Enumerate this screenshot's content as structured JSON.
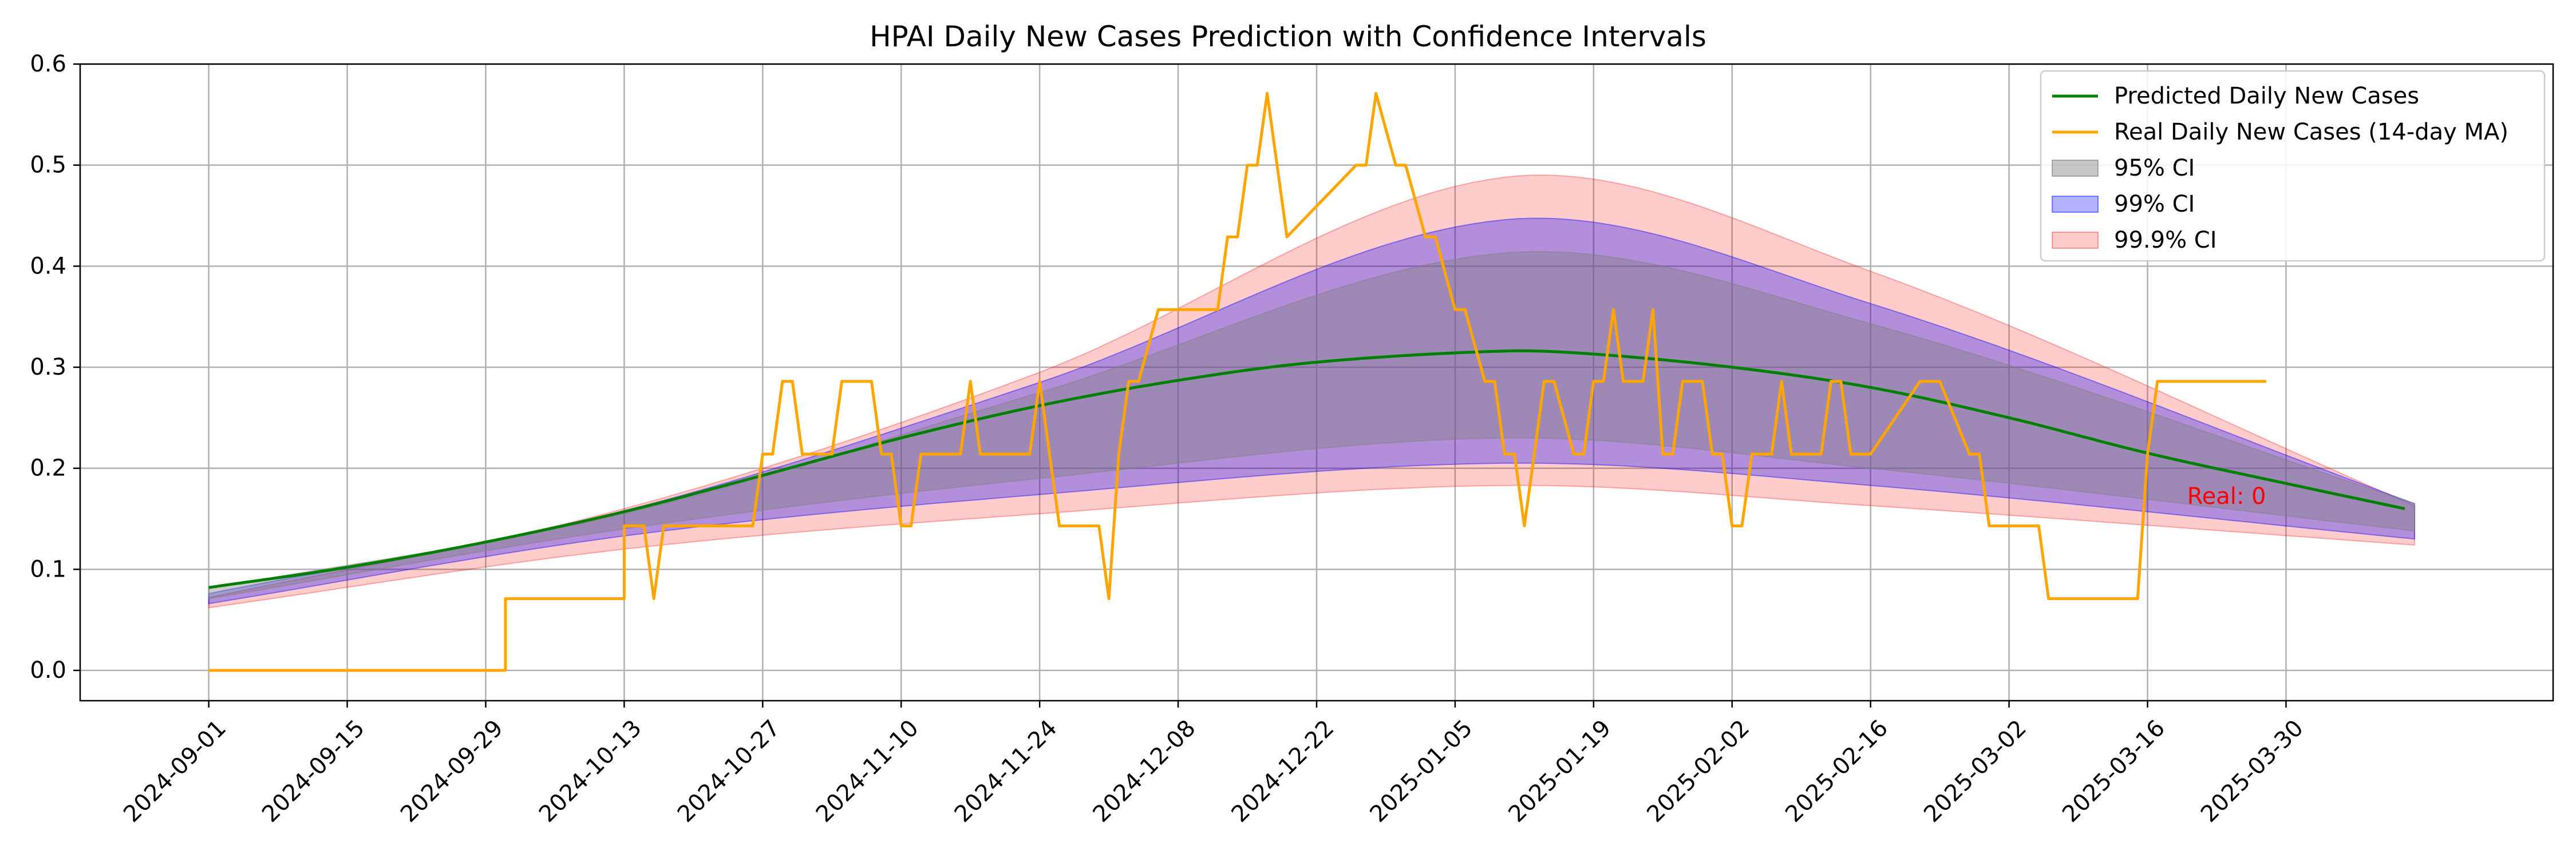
{
  "chart_data": {
    "type": "line",
    "title": "HPAI Daily New Cases Prediction with Confidence Intervals",
    "xlabel": "",
    "ylabel": "",
    "x_axis": {
      "type": "date",
      "min": "2024-08-19",
      "max": "2025-04-26",
      "ticks": [
        "2024-09-01",
        "2024-09-15",
        "2024-09-29",
        "2024-10-13",
        "2024-10-27",
        "2024-11-10",
        "2024-11-24",
        "2024-12-08",
        "2024-12-22",
        "2025-01-05",
        "2025-01-19",
        "2025-02-02",
        "2025-02-16",
        "2025-03-02",
        "2025-03-16",
        "2025-03-30"
      ]
    },
    "y_axis": {
      "min": -0.03,
      "max": 0.6,
      "ticks": [
        "0.0",
        "0.1",
        "0.2",
        "0.3",
        "0.4",
        "0.5",
        "0.6"
      ]
    },
    "grid": true,
    "legend_position": "top-right",
    "legend": [
      {
        "label": "Predicted Daily New Cases",
        "kind": "line",
        "color": "#008000"
      },
      {
        "label": "Real Daily New Cases (14-day MA)",
        "kind": "line",
        "color": "#FFA500"
      },
      {
        "label": "95% CI",
        "kind": "patch",
        "color": "#808080"
      },
      {
        "label": "99% CI",
        "kind": "patch",
        "color": "#0000FF"
      },
      {
        "label": "99.9% CI",
        "kind": "patch",
        "color": "#FF0000"
      }
    ],
    "bands": [
      {
        "name": "99.9% CI",
        "color": "#FF0000",
        "opacity": 0.2,
        "x": [
          "2024-09-01",
          "2024-10-13",
          "2024-11-24",
          "2025-01-10",
          "2025-02-16",
          "2025-04-12"
        ],
        "upper": [
          0.072,
          0.16,
          0.295,
          0.488,
          0.395,
          0.163
        ],
        "lower": [
          0.062,
          0.12,
          0.155,
          0.183,
          0.163,
          0.124
        ]
      },
      {
        "name": "99% CI",
        "color": "#0000FF",
        "opacity": 0.3,
        "x": [
          "2024-09-01",
          "2024-10-13",
          "2024-11-24",
          "2025-01-10",
          "2025-02-16",
          "2025-04-12"
        ],
        "upper": [
          0.076,
          0.158,
          0.285,
          0.446,
          0.363,
          0.165
        ],
        "lower": [
          0.066,
          0.133,
          0.174,
          0.205,
          0.183,
          0.13
        ]
      },
      {
        "name": "95% CI",
        "color": "#808080",
        "opacity": 0.4,
        "x": [
          "2024-09-01",
          "2024-10-13",
          "2024-11-24",
          "2025-01-10",
          "2025-02-16",
          "2025-04-12"
        ],
        "upper": [
          0.081,
          0.155,
          0.275,
          0.413,
          0.343,
          0.165
        ],
        "lower": [
          0.071,
          0.14,
          0.19,
          0.23,
          0.2,
          0.138
        ]
      }
    ],
    "series": [
      {
        "name": "Predicted Daily New Cases",
        "color": "#008000",
        "x": [
          "2024-09-01",
          "2024-09-15",
          "2024-09-29",
          "2024-10-13",
          "2024-10-27",
          "2024-11-10",
          "2024-11-24",
          "2024-12-08",
          "2024-12-22",
          "2025-01-10",
          "2025-01-19",
          "2025-02-02",
          "2025-02-16",
          "2025-03-02",
          "2025-03-16",
          "2025-03-30",
          "2025-04-11"
        ],
        "values": [
          0.082,
          0.102,
          0.127,
          0.157,
          0.193,
          0.23,
          0.262,
          0.287,
          0.305,
          0.316,
          0.313,
          0.3,
          0.28,
          0.25,
          0.215,
          0.185,
          0.16
        ]
      },
      {
        "name": "Real Daily New Cases (14-day MA)",
        "color": "#FFA500",
        "x": [
          "2024-09-01",
          "2024-10-01",
          "2024-10-01",
          "2024-10-13",
          "2024-10-13",
          "2024-10-15",
          "2024-10-16",
          "2024-10-17",
          "2024-10-18",
          "2024-10-26",
          "2024-10-27",
          "2024-10-28",
          "2024-10-29",
          "2024-10-30",
          "2024-10-31",
          "2024-11-01",
          "2024-11-03",
          "2024-11-04",
          "2024-11-05",
          "2024-11-07",
          "2024-11-08",
          "2024-11-09",
          "2024-11-10",
          "2024-11-11",
          "2024-11-12",
          "2024-11-13",
          "2024-11-16",
          "2024-11-17",
          "2024-11-18",
          "2024-11-23",
          "2024-11-24",
          "2024-11-25",
          "2024-11-26",
          "2024-11-30",
          "2024-12-01",
          "2024-12-02",
          "2024-12-03",
          "2024-12-04",
          "2024-12-06",
          "2024-12-07",
          "2024-12-12",
          "2024-12-13",
          "2024-12-14",
          "2024-12-15",
          "2024-12-16",
          "2024-12-17",
          "2024-12-18",
          "2024-12-19",
          "2024-12-26",
          "2024-12-27",
          "2024-12-28",
          "2024-12-30",
          "2024-12-31",
          "2025-01-02",
          "2025-01-03",
          "2025-01-05",
          "2025-01-06",
          "2025-01-08",
          "2025-01-09",
          "2025-01-10",
          "2025-01-11",
          "2025-01-12",
          "2025-01-13",
          "2025-01-14",
          "2025-01-15",
          "2025-01-17",
          "2025-01-18",
          "2025-01-19",
          "2025-01-20",
          "2025-01-21",
          "2025-01-22",
          "2025-01-24",
          "2025-01-25",
          "2025-01-26",
          "2025-01-27",
          "2025-01-28",
          "2025-01-30",
          "2025-01-31",
          "2025-02-01",
          "2025-02-02",
          "2025-02-03",
          "2025-02-04",
          "2025-02-06",
          "2025-02-07",
          "2025-02-08",
          "2025-02-11",
          "2025-02-12",
          "2025-02-13",
          "2025-02-14",
          "2025-02-15",
          "2025-02-16",
          "2025-02-21",
          "2025-02-22",
          "2025-02-23",
          "2025-02-26",
          "2025-02-27",
          "2025-02-28",
          "2025-03-05",
          "2025-03-06",
          "2025-03-15",
          "2025-03-16",
          "2025-03-17",
          "2025-03-28"
        ],
        "values": [
          0.0,
          0.0,
          0.071,
          0.071,
          0.143,
          0.143,
          0.071,
          0.143,
          0.143,
          0.143,
          0.214,
          0.214,
          0.286,
          0.286,
          0.214,
          0.214,
          0.214,
          0.286,
          0.286,
          0.286,
          0.214,
          0.214,
          0.143,
          0.143,
          0.214,
          0.214,
          0.214,
          0.286,
          0.214,
          0.214,
          0.286,
          0.214,
          0.143,
          0.143,
          0.071,
          0.214,
          0.286,
          0.286,
          0.357,
          0.357,
          0.357,
          0.429,
          0.429,
          0.5,
          0.5,
          0.571,
          0.5,
          0.429,
          0.5,
          0.5,
          0.571,
          0.5,
          0.5,
          0.429,
          0.429,
          0.357,
          0.357,
          0.286,
          0.286,
          0.214,
          0.214,
          0.143,
          0.214,
          0.286,
          0.286,
          0.214,
          0.214,
          0.286,
          0.286,
          0.357,
          0.286,
          0.286,
          0.357,
          0.214,
          0.214,
          0.286,
          0.286,
          0.214,
          0.214,
          0.143,
          0.143,
          0.214,
          0.214,
          0.286,
          0.214,
          0.214,
          0.286,
          0.286,
          0.214,
          0.214,
          0.214,
          0.286,
          0.286,
          0.286,
          0.214,
          0.214,
          0.143,
          0.143,
          0.071,
          0.071,
          0.214,
          0.286,
          0.286
        ]
      }
    ],
    "annotations": [
      {
        "text": "Real: 0",
        "x": "2025-03-20",
        "y": 0.172,
        "color": "#FF0000"
      }
    ]
  }
}
